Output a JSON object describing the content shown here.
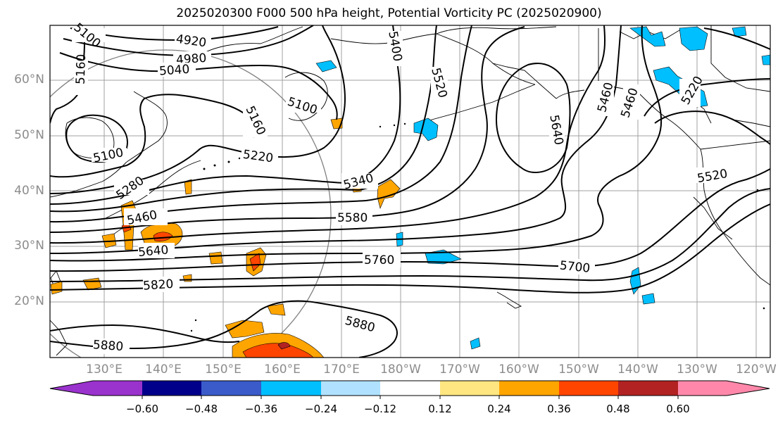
{
  "title": "2025020300 F000 500 hPa height, Potential Vorticity PC (2025020900)",
  "lat_labels": [
    "20°N",
    "30°N",
    "40°N",
    "50°N",
    "60°N"
  ],
  "lon_labels": [
    "130°E",
    "140°E",
    "150°E",
    "160°E",
    "170°E",
    "180°W",
    "170°W",
    "160°W",
    "150°W",
    "140°W",
    "130°W",
    "120°W"
  ],
  "contour_labels": [
    "4920",
    "4980",
    "5040",
    "5100",
    "5100",
    "5100",
    "5160",
    "5160",
    "5220",
    "5220",
    "5280",
    "5340",
    "5400",
    "5460",
    "5460",
    "5520",
    "5520",
    "5580",
    "5640",
    "5640",
    "5700",
    "5760",
    "5820",
    "5880",
    "5880",
    "5460"
  ],
  "colorbar": {
    "tick_labels": [
      "−0.60",
      "−0.48",
      "−0.36",
      "−0.24",
      "−0.12",
      "0.12",
      "0.24",
      "0.36",
      "0.48",
      "0.60"
    ],
    "colors": [
      "#9a32cd",
      "#00008b",
      "#3a5bc9",
      "#00bfff",
      "#b0e2ff",
      "#ffffff",
      "#ffe680",
      "#ffa500",
      "#ff4500",
      "#b22222",
      "#ff88aa"
    ]
  }
}
